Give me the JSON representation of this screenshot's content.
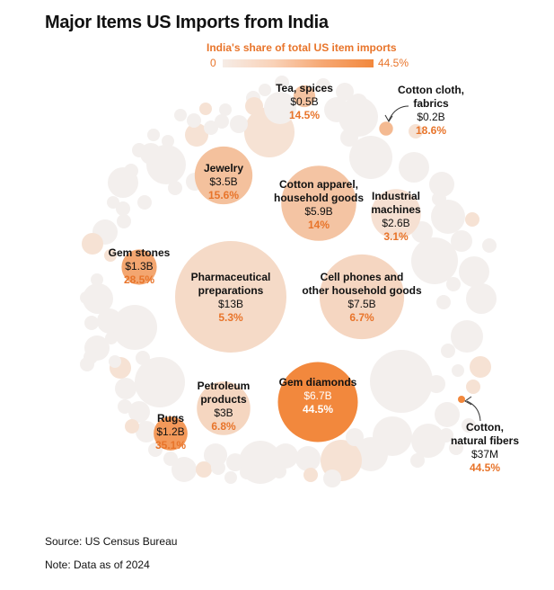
{
  "title": "Major Items US Imports from India",
  "legend": {
    "title": "India's share of total US item imports",
    "min_label": "0",
    "max_label": "44.5%"
  },
  "colors": {
    "text_accent": "#e8742a",
    "bubble_min": "#f6ece6",
    "bubble_max": "#f2883d",
    "background_bubble": "#f3efed"
  },
  "chart_data": {
    "type": "bubble",
    "title": "Major Items US Imports from India",
    "size_measure": "US import value from India",
    "color_measure": "India's share of total US item imports",
    "color_range": [
      0,
      44.5
    ],
    "items": [
      {
        "name": "Pharmaceutical preparations",
        "value_label": "$13B",
        "value_usd_b": 13,
        "share_label": "5.3%",
        "share": 5.3
      },
      {
        "name": "Cell phones and other household goods",
        "value_label": "$7.5B",
        "value_usd_b": 7.5,
        "share_label": "6.7%",
        "share": 6.7
      },
      {
        "name": "Gem diamonds",
        "value_label": "$6.7B",
        "value_usd_b": 6.7,
        "share_label": "44.5%",
        "share": 44.5
      },
      {
        "name": "Cotton apparel, household goods",
        "value_label": "$5.9B",
        "value_usd_b": 5.9,
        "share_label": "14%",
        "share": 14
      },
      {
        "name": "Jewelry",
        "value_label": "$3.5B",
        "value_usd_b": 3.5,
        "share_label": "15.6%",
        "share": 15.6
      },
      {
        "name": "Petroleum products",
        "value_label": "$3B",
        "value_usd_b": 3,
        "share_label": "6.8%",
        "share": 6.8
      },
      {
        "name": "Industrial machines",
        "value_label": "$2.6B",
        "value_usd_b": 2.6,
        "share_label": "3.1%",
        "share": 3.1
      },
      {
        "name": "Gem stones",
        "value_label": "$1.3B",
        "value_usd_b": 1.3,
        "share_label": "28.5%",
        "share": 28.5
      },
      {
        "name": "Rugs",
        "value_label": "$1.2B",
        "value_usd_b": 1.2,
        "share_label": "35.1%",
        "share": 35.1
      },
      {
        "name": "Tea, spices",
        "value_label": "$0.5B",
        "value_usd_b": 0.5,
        "share_label": "14.5%",
        "share": 14.5
      },
      {
        "name": "Cotton cloth, fabrics",
        "value_label": "$0.2B",
        "value_usd_b": 0.2,
        "share_label": "18.6%",
        "share": 18.6
      },
      {
        "name": "Cotton, natural fibers",
        "value_label": "$37M",
        "value_usd_b": 0.037,
        "share_label": "44.5%",
        "share": 44.5
      }
    ]
  },
  "labels": {
    "pharma": {
      "name1": "Pharmaceutical",
      "name2": "preparations",
      "value": "$13B",
      "share": "5.3%"
    },
    "phones": {
      "name1": "Cell phones and",
      "name2": "other household goods",
      "value": "$7.5B",
      "share": "6.7%"
    },
    "diamonds": {
      "name1": "Gem diamonds",
      "value": "$6.7B",
      "share": "44.5%"
    },
    "apparel": {
      "name1": "Cotton apparel,",
      "name2": "household goods",
      "value": "$5.9B",
      "share": "14%"
    },
    "jewelry": {
      "name1": "Jewelry",
      "value": "$3.5B",
      "share": "15.6%"
    },
    "petroleum": {
      "name1": "Petroleum",
      "name2": "products",
      "value": "$3B",
      "share": "6.8%"
    },
    "machines": {
      "name1": "Industrial",
      "name2": "machines",
      "value": "$2.6B",
      "share": "3.1%"
    },
    "gemstones": {
      "name1": "Gem stones",
      "value": "$1.3B",
      "share": "28.5%"
    },
    "rugs": {
      "name1": "Rugs",
      "value": "$1.2B",
      "share": "35.1%"
    },
    "tea": {
      "name1": "Tea, spices",
      "value": "$0.5B",
      "share": "14.5%"
    },
    "cloth": {
      "name1": "Cotton cloth,",
      "name2": "fabrics",
      "value": "$0.2B",
      "share": "18.6%"
    },
    "fibers": {
      "name1": "Cotton,",
      "name2": "natural fibers",
      "value": "$37M",
      "share": "44.5%"
    }
  },
  "footer": {
    "source": "Source: US Census Bureau",
    "note": "Note: Data as of 2024"
  }
}
